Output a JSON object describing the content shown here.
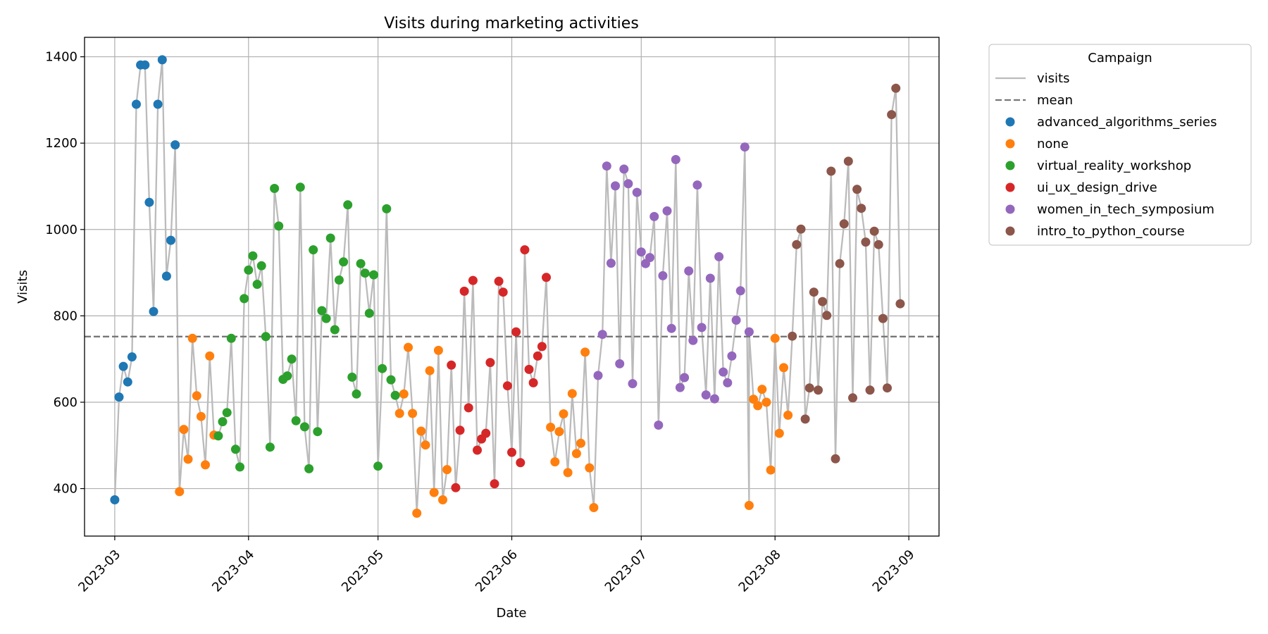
{
  "chart_data": {
    "type": "scatter",
    "title": "Visits during marketing activities",
    "xlabel": "Date",
    "ylabel": "Visits",
    "x_type": "date",
    "xlim": [
      "2023-02-22",
      "2023-09-08"
    ],
    "ylim": [
      290,
      1445
    ],
    "x_ticks": [
      "2023-03-01",
      "2023-04-01",
      "2023-05-01",
      "2023-06-01",
      "2023-07-01",
      "2023-08-01",
      "2023-09-01"
    ],
    "x_tick_labels": [
      "2023-03",
      "2023-04",
      "2023-05",
      "2023-06",
      "2023-07",
      "2023-08",
      "2023-09"
    ],
    "y_ticks": [
      400,
      600,
      800,
      1000,
      1200,
      1400
    ],
    "y_tick_labels": [
      "400",
      "600",
      "800",
      "1000",
      "1200",
      "1400"
    ],
    "grid": true,
    "legend": {
      "title": "Campaign",
      "placement": "outside-top-right",
      "line_entries": [
        {
          "label": "visits",
          "color": "#bbbbbb",
          "style": "solid"
        },
        {
          "label": "mean",
          "color": "#777777",
          "style": "dashed"
        }
      ]
    },
    "line_color": "#bbbbbb",
    "mean": {
      "label": "mean",
      "value": 752,
      "color": "#777777"
    },
    "series": [
      {
        "name": "advanced_algorithms_series",
        "color": "#1f77b4",
        "points": [
          [
            "2023-03-01",
            374
          ],
          [
            "2023-03-02",
            612
          ],
          [
            "2023-03-03",
            683
          ],
          [
            "2023-03-04",
            647
          ],
          [
            "2023-03-05",
            705
          ],
          [
            "2023-03-06",
            1290
          ],
          [
            "2023-03-07",
            1381
          ],
          [
            "2023-03-08",
            1381
          ],
          [
            "2023-03-09",
            1063
          ],
          [
            "2023-03-10",
            810
          ],
          [
            "2023-03-11",
            1290
          ],
          [
            "2023-03-12",
            1393
          ],
          [
            "2023-03-13",
            892
          ],
          [
            "2023-03-14",
            975
          ],
          [
            "2023-03-15",
            1196
          ]
        ]
      },
      {
        "name": "none",
        "color": "#ff7f0e",
        "points": [
          [
            "2023-03-16",
            393
          ],
          [
            "2023-03-17",
            537
          ],
          [
            "2023-03-18",
            468
          ],
          [
            "2023-03-19",
            748
          ],
          [
            "2023-03-20",
            615
          ],
          [
            "2023-03-21",
            567
          ],
          [
            "2023-03-22",
            455
          ],
          [
            "2023-03-23",
            707
          ],
          [
            "2023-03-24",
            524
          ],
          [
            "2023-05-06",
            574
          ],
          [
            "2023-05-07",
            619
          ],
          [
            "2023-05-08",
            727
          ],
          [
            "2023-05-09",
            574
          ],
          [
            "2023-05-10",
            343
          ],
          [
            "2023-05-11",
            533
          ],
          [
            "2023-05-12",
            501
          ],
          [
            "2023-05-13",
            673
          ],
          [
            "2023-05-14",
            391
          ],
          [
            "2023-05-15",
            720
          ],
          [
            "2023-05-16",
            374
          ],
          [
            "2023-05-17",
            444
          ],
          [
            "2023-06-10",
            542
          ],
          [
            "2023-06-11",
            462
          ],
          [
            "2023-06-12",
            532
          ],
          [
            "2023-06-13",
            573
          ],
          [
            "2023-06-14",
            437
          ],
          [
            "2023-06-15",
            620
          ],
          [
            "2023-06-16",
            481
          ],
          [
            "2023-06-17",
            505
          ],
          [
            "2023-06-18",
            716
          ],
          [
            "2023-06-19",
            448
          ],
          [
            "2023-06-20",
            356
          ],
          [
            "2023-07-26",
            361
          ],
          [
            "2023-07-27",
            607
          ],
          [
            "2023-07-28",
            592
          ],
          [
            "2023-07-29",
            630
          ],
          [
            "2023-07-30",
            600
          ],
          [
            "2023-07-31",
            443
          ],
          [
            "2023-08-01",
            748
          ],
          [
            "2023-08-02",
            528
          ],
          [
            "2023-08-03",
            680
          ],
          [
            "2023-08-04",
            570
          ]
        ]
      },
      {
        "name": "virtual_reality_workshop",
        "color": "#2ca02c",
        "points": [
          [
            "2023-03-25",
            522
          ],
          [
            "2023-03-26",
            555
          ],
          [
            "2023-03-27",
            576
          ],
          [
            "2023-03-28",
            748
          ],
          [
            "2023-03-29",
            491
          ],
          [
            "2023-03-30",
            450
          ],
          [
            "2023-03-31",
            840
          ],
          [
            "2023-04-01",
            906
          ],
          [
            "2023-04-02",
            939
          ],
          [
            "2023-04-03",
            873
          ],
          [
            "2023-04-04",
            916
          ],
          [
            "2023-04-05",
            752
          ],
          [
            "2023-04-06",
            496
          ],
          [
            "2023-04-07",
            1095
          ],
          [
            "2023-04-08",
            1008
          ],
          [
            "2023-04-09",
            653
          ],
          [
            "2023-04-10",
            661
          ],
          [
            "2023-04-11",
            700
          ],
          [
            "2023-04-12",
            557
          ],
          [
            "2023-04-13",
            1098
          ],
          [
            "2023-04-14",
            543
          ],
          [
            "2023-04-15",
            446
          ],
          [
            "2023-04-16",
            953
          ],
          [
            "2023-04-17",
            532
          ],
          [
            "2023-04-18",
            812
          ],
          [
            "2023-04-19",
            794
          ],
          [
            "2023-04-20",
            980
          ],
          [
            "2023-04-21",
            768
          ],
          [
            "2023-04-22",
            883
          ],
          [
            "2023-04-23",
            925
          ],
          [
            "2023-04-24",
            1057
          ],
          [
            "2023-04-25",
            658
          ],
          [
            "2023-04-26",
            619
          ],
          [
            "2023-04-27",
            921
          ],
          [
            "2023-04-28",
            899
          ],
          [
            "2023-04-29",
            806
          ],
          [
            "2023-04-30",
            895
          ],
          [
            "2023-05-01",
            452
          ],
          [
            "2023-05-02",
            678
          ],
          [
            "2023-05-03",
            1048
          ],
          [
            "2023-05-04",
            652
          ],
          [
            "2023-05-05",
            616
          ]
        ]
      },
      {
        "name": "ui_ux_design_drive",
        "color": "#d62728",
        "points": [
          [
            "2023-05-18",
            686
          ],
          [
            "2023-05-19",
            402
          ],
          [
            "2023-05-20",
            535
          ],
          [
            "2023-05-21",
            857
          ],
          [
            "2023-05-22",
            587
          ],
          [
            "2023-05-23",
            882
          ],
          [
            "2023-05-24",
            489
          ],
          [
            "2023-05-25",
            515
          ],
          [
            "2023-05-26",
            528
          ],
          [
            "2023-05-27",
            692
          ],
          [
            "2023-05-28",
            411
          ],
          [
            "2023-05-29",
            880
          ],
          [
            "2023-05-30",
            855
          ],
          [
            "2023-05-31",
            638
          ],
          [
            "2023-06-01",
            484
          ],
          [
            "2023-06-02",
            763
          ],
          [
            "2023-06-03",
            460
          ],
          [
            "2023-06-04",
            953
          ],
          [
            "2023-06-05",
            676
          ],
          [
            "2023-06-06",
            645
          ],
          [
            "2023-06-07",
            707
          ],
          [
            "2023-06-08",
            729
          ],
          [
            "2023-06-09",
            889
          ]
        ]
      },
      {
        "name": "women_in_tech_symposium",
        "color": "#9467bd",
        "points": [
          [
            "2023-06-21",
            662
          ],
          [
            "2023-06-22",
            757
          ],
          [
            "2023-06-23",
            1147
          ],
          [
            "2023-06-24",
            922
          ],
          [
            "2023-06-25",
            1101
          ],
          [
            "2023-06-26",
            689
          ],
          [
            "2023-06-27",
            1140
          ],
          [
            "2023-06-28",
            1106
          ],
          [
            "2023-06-29",
            643
          ],
          [
            "2023-06-30",
            1086
          ],
          [
            "2023-07-01",
            948
          ],
          [
            "2023-07-02",
            921
          ],
          [
            "2023-07-03",
            935
          ],
          [
            "2023-07-04",
            1030
          ],
          [
            "2023-07-05",
            547
          ],
          [
            "2023-07-06",
            893
          ],
          [
            "2023-07-07",
            1043
          ],
          [
            "2023-07-08",
            771
          ],
          [
            "2023-07-09",
            1162
          ],
          [
            "2023-07-10",
            634
          ],
          [
            "2023-07-11",
            657
          ],
          [
            "2023-07-12",
            904
          ],
          [
            "2023-07-13",
            743
          ],
          [
            "2023-07-14",
            1103
          ],
          [
            "2023-07-15",
            773
          ],
          [
            "2023-07-16",
            617
          ],
          [
            "2023-07-17",
            887
          ],
          [
            "2023-07-18",
            608
          ],
          [
            "2023-07-19",
            937
          ],
          [
            "2023-07-20",
            670
          ],
          [
            "2023-07-21",
            645
          ],
          [
            "2023-07-22",
            707
          ],
          [
            "2023-07-23",
            790
          ],
          [
            "2023-07-24",
            858
          ],
          [
            "2023-07-25",
            1191
          ],
          [
            "2023-07-26",
            763
          ]
        ]
      },
      {
        "name": "intro_to_python_course",
        "color": "#8c564b",
        "points": [
          [
            "2023-08-05",
            753
          ],
          [
            "2023-08-06",
            965
          ],
          [
            "2023-08-07",
            1001
          ],
          [
            "2023-08-08",
            561
          ],
          [
            "2023-08-09",
            633
          ],
          [
            "2023-08-10",
            855
          ],
          [
            "2023-08-11",
            628
          ],
          [
            "2023-08-12",
            833
          ],
          [
            "2023-08-13",
            801
          ],
          [
            "2023-08-14",
            1135
          ],
          [
            "2023-08-15",
            469
          ],
          [
            "2023-08-16",
            921
          ],
          [
            "2023-08-17",
            1013
          ],
          [
            "2023-08-18",
            1158
          ],
          [
            "2023-08-19",
            610
          ],
          [
            "2023-08-20",
            1093
          ],
          [
            "2023-08-21",
            1049
          ],
          [
            "2023-08-22",
            971
          ],
          [
            "2023-08-23",
            628
          ],
          [
            "2023-08-24",
            996
          ],
          [
            "2023-08-25",
            965
          ],
          [
            "2023-08-26",
            794
          ],
          [
            "2023-08-27",
            633
          ],
          [
            "2023-08-28",
            1266
          ],
          [
            "2023-08-29",
            1327
          ],
          [
            "2023-08-30",
            828
          ]
        ]
      }
    ]
  }
}
